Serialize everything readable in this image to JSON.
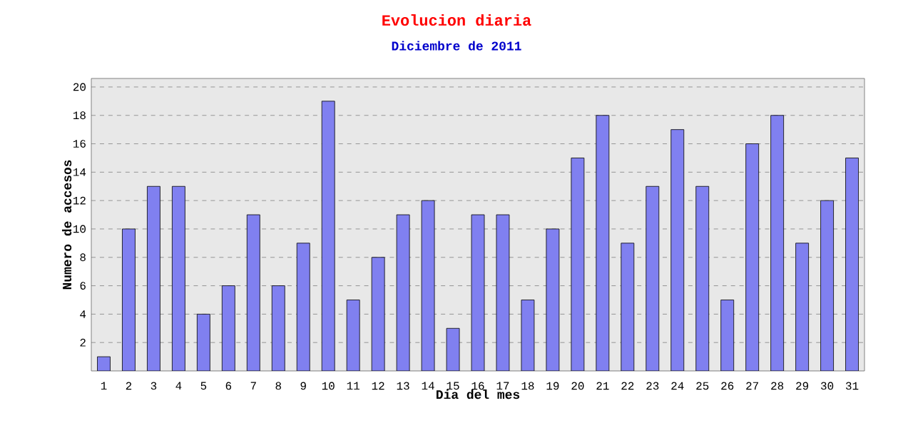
{
  "chart_data": {
    "type": "bar",
    "title": "Evolucion diaria",
    "subtitle": "Diciembre de 2011",
    "xlabel": "Dia del mes",
    "ylabel": "Numero de accesos",
    "categories": [
      "1",
      "2",
      "3",
      "4",
      "5",
      "6",
      "7",
      "8",
      "9",
      "10",
      "11",
      "12",
      "13",
      "14",
      "15",
      "16",
      "17",
      "18",
      "19",
      "20",
      "21",
      "22",
      "23",
      "24",
      "25",
      "26",
      "27",
      "28",
      "29",
      "30",
      "31"
    ],
    "values": [
      1,
      10,
      13,
      13,
      4,
      6,
      11,
      6,
      9,
      19,
      5,
      8,
      11,
      12,
      3,
      11,
      11,
      5,
      10,
      15,
      18,
      9,
      13,
      17,
      13,
      5,
      16,
      18,
      9,
      12,
      15
    ],
    "color": "#8080f0",
    "ylim": [
      0,
      20.6
    ],
    "yticks": [
      2,
      4,
      6,
      8,
      10,
      12,
      14,
      16,
      18,
      20
    ],
    "grid": "y"
  }
}
